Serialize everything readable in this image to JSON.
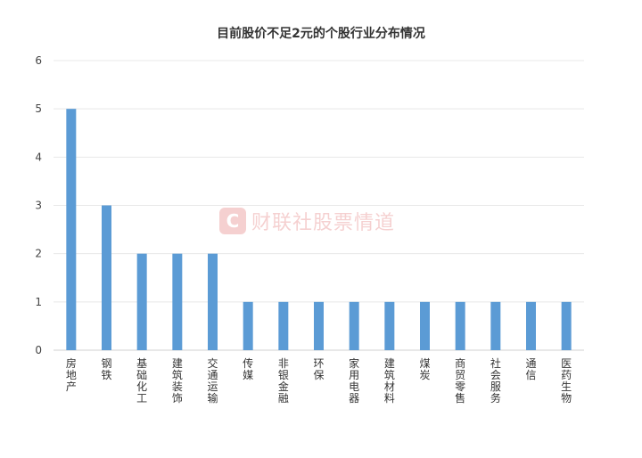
{
  "chart_data": {
    "type": "bar",
    "title": "目前股价不足2元的个股行业分布情况",
    "xlabel": "",
    "ylabel": "",
    "ylim": [
      0,
      6
    ],
    "yticks": [
      0,
      1,
      2,
      3,
      4,
      5,
      6
    ],
    "grid": true,
    "legend": "none",
    "bar_color": "#5b9bd5",
    "categories": [
      "房地产",
      "钢铁",
      "基础化工",
      "建筑装饰",
      "交通运输",
      "传媒",
      "非银金融",
      "环保",
      "家用电器",
      "建筑材料",
      "煤炭",
      "商贸零售",
      "社会服务",
      "通信",
      "医药生物"
    ],
    "values": [
      5,
      3,
      2,
      2,
      2,
      1,
      1,
      1,
      1,
      1,
      1,
      1,
      1,
      1,
      1
    ]
  },
  "watermark": {
    "logo_letter": "C",
    "text": "财联社股票情道"
  }
}
